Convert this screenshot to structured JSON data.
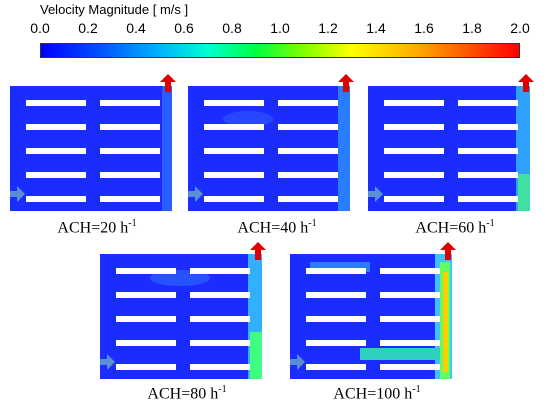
{
  "colorbar": {
    "title": "Velocity Magnitude [ m/s ]",
    "ticks": [
      "0.0",
      "0.2",
      "0.4",
      "0.6",
      "0.8",
      "1.0",
      "1.2",
      "1.4",
      "1.6",
      "1.8",
      "2.0"
    ]
  },
  "panels": [
    {
      "label": "ACH=20 h",
      "sup": "-1"
    },
    {
      "label": "ACH=40 h",
      "sup": "-1"
    },
    {
      "label": "ACH=60 h",
      "sup": "-1"
    },
    {
      "label": "ACH=80 h",
      "sup": "-1"
    },
    {
      "label": "ACH=100 h",
      "sup": "-1"
    }
  ],
  "colors": {
    "domain": "#1a2cff",
    "rack": "#ffffff",
    "outlet_arrow": "#e00000",
    "inlet_arrow": "#5a8fd6"
  }
}
